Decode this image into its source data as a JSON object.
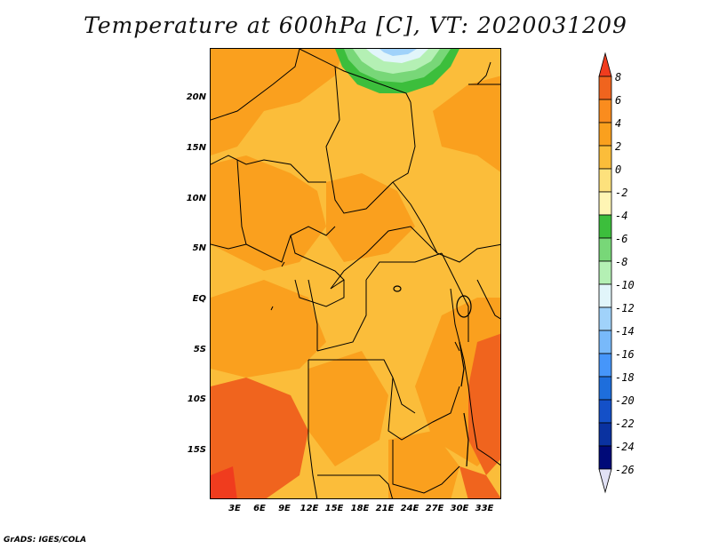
{
  "title": "Temperature at 600hPa [C], VT: 2020031209",
  "lat_labels": [
    "20N",
    "15N",
    "10N",
    "5N",
    "EQ",
    "5S",
    "10S",
    "15S"
  ],
  "lon_labels": [
    "3E",
    "6E",
    "9E",
    "12E",
    "15E",
    "18E",
    "21E",
    "24E",
    "27E",
    "30E",
    "33E"
  ],
  "colorbar": {
    "labels": [
      "8",
      "6",
      "4",
      "2",
      "0",
      "-2",
      "-4",
      "-6",
      "-8",
      "-10",
      "-12",
      "-14",
      "-16",
      "-18",
      "-20",
      "-22",
      "-24",
      "-26"
    ],
    "colors": [
      "#f03c1e",
      "#f0641e",
      "#fa8c1e",
      "#faa01e",
      "#fbbd3a",
      "#fde17c",
      "#fff5b4",
      "#3cbe3c",
      "#78d778",
      "#b4f0b4",
      "#e1f5fa",
      "#a0d2fa",
      "#78b9fa",
      "#4696fa",
      "#1e6edc",
      "#1450c8",
      "#0a32a0",
      "#000a78",
      "#e1e1f5"
    ]
  },
  "credit": "GrADS: IGES/COLA"
}
